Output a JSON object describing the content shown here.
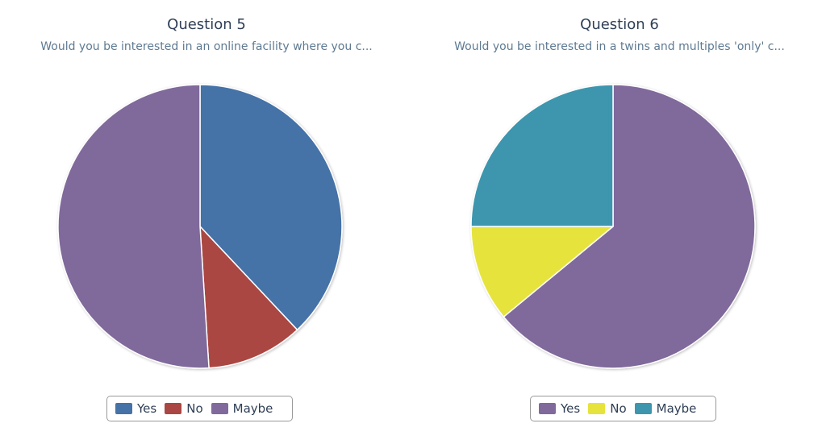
{
  "chart_data": [
    {
      "type": "pie",
      "title": "Question 5",
      "subtitle": "Would you be interested in an online facility where you c...",
      "categories": [
        "Yes",
        "No",
        "Maybe"
      ],
      "values": [
        38,
        11,
        51
      ],
      "colors": [
        "#4572a7",
        "#aa4643",
        "#80699b"
      ],
      "legend": "bottom-center"
    },
    {
      "type": "pie",
      "title": "Question 6",
      "subtitle": "Would you be interested in a twins and multiples 'only' c...",
      "categories": [
        "Yes",
        "No",
        "Maybe"
      ],
      "values": [
        64,
        11,
        25
      ],
      "colors": [
        "#80699b",
        "#e6e33c",
        "#3d96ae"
      ],
      "legend": "bottom-center"
    }
  ]
}
